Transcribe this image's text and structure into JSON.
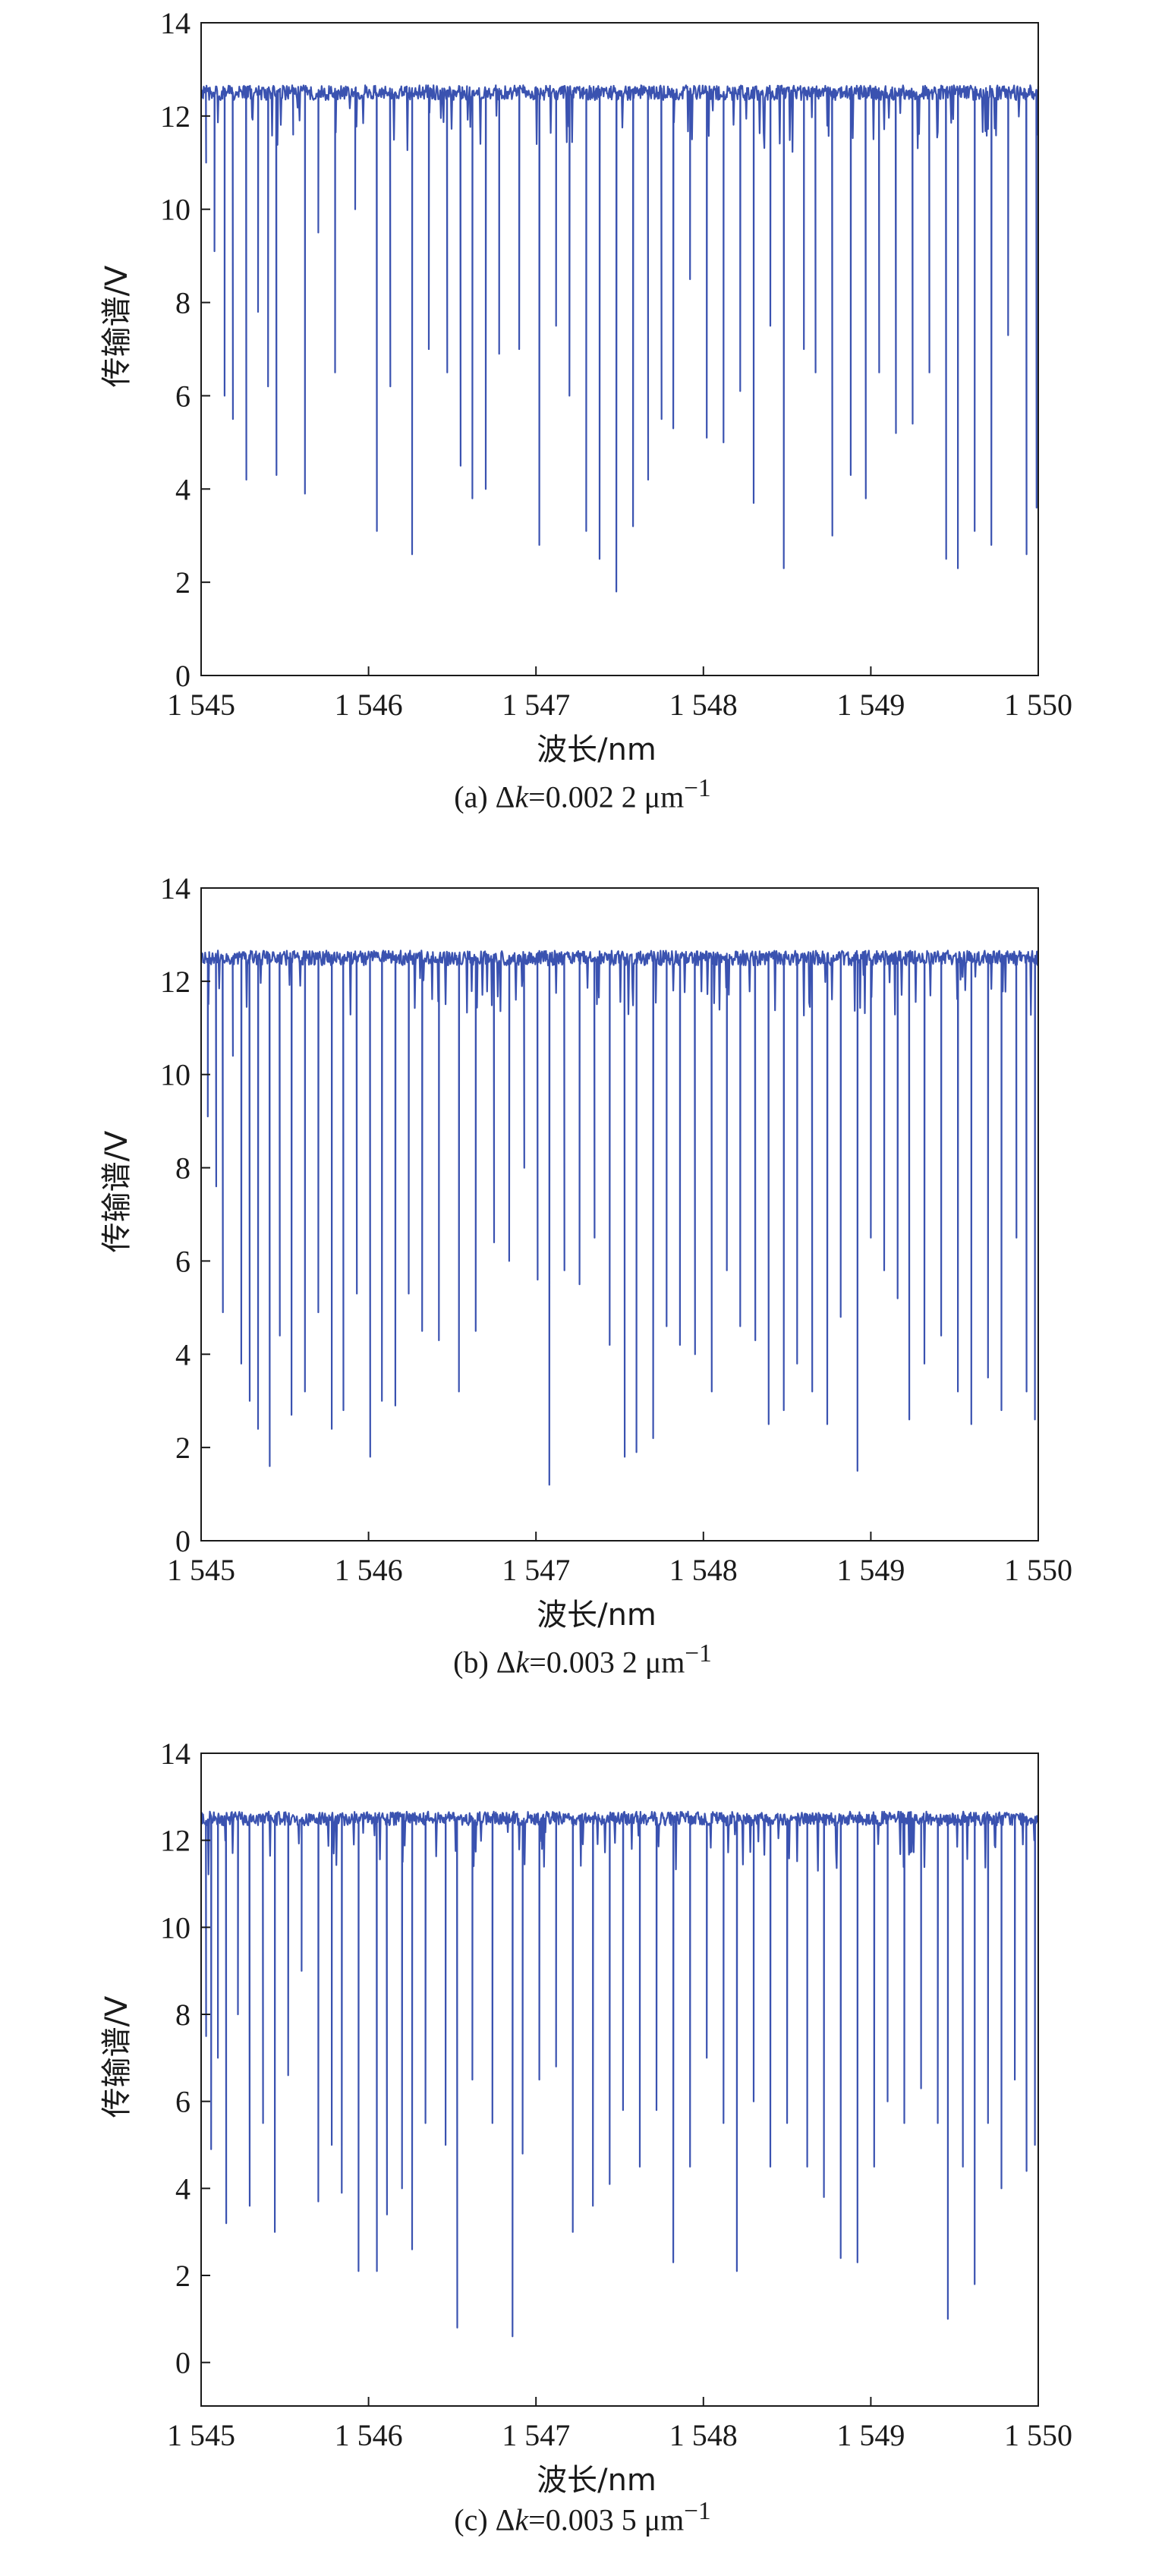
{
  "chart_data": [
    {
      "type": "line",
      "xlabel": "波长/nm",
      "ylabel": "传输谱/V",
      "xlim": [
        1545,
        1550
      ],
      "ylim": [
        0,
        14
      ],
      "xticks": [
        1545,
        1546,
        1547,
        1548,
        1549,
        1550
      ],
      "xtick_labels": [
        "1 545",
        "1 546",
        "1 547",
        "1 548",
        "1 549",
        "1 550"
      ],
      "yticks": [
        0,
        2,
        4,
        6,
        8,
        10,
        12,
        14
      ],
      "ytick_labels": [
        "0",
        "2",
        "4",
        "6",
        "8",
        "10",
        "12",
        "14"
      ],
      "grid": false,
      "caption": {
        "prefix": "(a) Δ",
        "k": "k",
        "value": "=0.002 2 μm",
        "sup": "−1"
      },
      "series": [
        {
          "color": "#3a52b0",
          "baseline": 12.5,
          "dips": [
            [
              1545.03,
              11.0
            ],
            [
              1545.08,
              9.1
            ],
            [
              1545.14,
              6.0
            ],
            [
              1545.19,
              5.5
            ],
            [
              1545.27,
              4.2
            ],
            [
              1545.34,
              7.8
            ],
            [
              1545.4,
              6.2
            ],
            [
              1545.45,
              4.3
            ],
            [
              1545.55,
              11.6
            ],
            [
              1545.62,
              3.9
            ],
            [
              1545.7,
              9.5
            ],
            [
              1545.8,
              6.5
            ],
            [
              1545.92,
              10.0
            ],
            [
              1546.05,
              3.1
            ],
            [
              1546.13,
              6.2
            ],
            [
              1546.26,
              2.6
            ],
            [
              1546.36,
              7.0
            ],
            [
              1546.47,
              6.5
            ],
            [
              1546.55,
              4.5
            ],
            [
              1546.62,
              3.8
            ],
            [
              1546.7,
              4.0
            ],
            [
              1546.78,
              6.9
            ],
            [
              1546.9,
              7.0
            ],
            [
              1547.02,
              2.8
            ],
            [
              1547.12,
              7.5
            ],
            [
              1547.2,
              6.0
            ],
            [
              1547.3,
              3.1
            ],
            [
              1547.38,
              2.5
            ],
            [
              1547.48,
              1.8
            ],
            [
              1547.58,
              3.2
            ],
            [
              1547.67,
              4.2
            ],
            [
              1547.75,
              5.5
            ],
            [
              1547.82,
              5.3
            ],
            [
              1547.92,
              8.5
            ],
            [
              1548.02,
              5.1
            ],
            [
              1548.12,
              5.0
            ],
            [
              1548.22,
              6.1
            ],
            [
              1548.3,
              3.7
            ],
            [
              1548.4,
              7.5
            ],
            [
              1548.48,
              2.3
            ],
            [
              1548.6,
              7.0
            ],
            [
              1548.67,
              6.5
            ],
            [
              1548.77,
              3.0
            ],
            [
              1548.88,
              4.3
            ],
            [
              1548.97,
              3.8
            ],
            [
              1549.05,
              6.5
            ],
            [
              1549.15,
              5.2
            ],
            [
              1549.25,
              5.4
            ],
            [
              1549.35,
              6.5
            ],
            [
              1549.45,
              2.5
            ],
            [
              1549.52,
              2.3
            ],
            [
              1549.62,
              3.1
            ],
            [
              1549.72,
              2.8
            ],
            [
              1549.82,
              7.3
            ],
            [
              1549.93,
              2.6
            ],
            [
              1549.99,
              3.6
            ]
          ]
        }
      ]
    },
    {
      "type": "line",
      "xlabel": "波长/nm",
      "ylabel": "传输谱/V",
      "xlim": [
        1545,
        1550
      ],
      "ylim": [
        0,
        14
      ],
      "xticks": [
        1545,
        1546,
        1547,
        1548,
        1549,
        1550
      ],
      "xtick_labels": [
        "1 545",
        "1 546",
        "1 547",
        "1 548",
        "1 549",
        "1 550"
      ],
      "yticks": [
        0,
        2,
        4,
        6,
        8,
        10,
        12,
        14
      ],
      "ytick_labels": [
        "0",
        "2",
        "4",
        "6",
        "8",
        "10",
        "12",
        "14"
      ],
      "grid": false,
      "caption": {
        "prefix": "(b) Δ",
        "k": "k",
        "value": "=0.003 2 μm",
        "sup": "−1"
      },
      "series": [
        {
          "color": "#3a52b0",
          "baseline": 12.5,
          "dips": [
            [
              1545.04,
              9.1
            ],
            [
              1545.09,
              7.6
            ],
            [
              1545.13,
              4.9
            ],
            [
              1545.19,
              10.4
            ],
            [
              1545.24,
              3.8
            ],
            [
              1545.29,
              3.0
            ],
            [
              1545.34,
              2.4
            ],
            [
              1545.41,
              1.6
            ],
            [
              1545.47,
              4.4
            ],
            [
              1545.54,
              2.7
            ],
            [
              1545.62,
              3.2
            ],
            [
              1545.7,
              4.9
            ],
            [
              1545.78,
              2.4
            ],
            [
              1545.85,
              2.8
            ],
            [
              1545.93,
              5.3
            ],
            [
              1546.01,
              1.8
            ],
            [
              1546.08,
              3.0
            ],
            [
              1546.16,
              2.9
            ],
            [
              1546.24,
              5.3
            ],
            [
              1546.32,
              4.5
            ],
            [
              1546.42,
              4.3
            ],
            [
              1546.54,
              3.2
            ],
            [
              1546.64,
              4.5
            ],
            [
              1546.75,
              6.4
            ],
            [
              1546.84,
              6.0
            ],
            [
              1546.93,
              8.0
            ],
            [
              1547.01,
              5.6
            ],
            [
              1547.08,
              1.2
            ],
            [
              1547.17,
              5.8
            ],
            [
              1547.26,
              5.5
            ],
            [
              1547.35,
              6.5
            ],
            [
              1547.44,
              4.2
            ],
            [
              1547.53,
              1.8
            ],
            [
              1547.6,
              1.9
            ],
            [
              1547.7,
              2.2
            ],
            [
              1547.78,
              4.6
            ],
            [
              1547.86,
              4.2
            ],
            [
              1547.95,
              4.0
            ],
            [
              1548.05,
              3.2
            ],
            [
              1548.14,
              5.8
            ],
            [
              1548.22,
              4.6
            ],
            [
              1548.31,
              4.3
            ],
            [
              1548.39,
              2.5
            ],
            [
              1548.48,
              2.8
            ],
            [
              1548.56,
              3.8
            ],
            [
              1548.65,
              3.2
            ],
            [
              1548.74,
              2.5
            ],
            [
              1548.82,
              4.8
            ],
            [
              1548.92,
              1.5
            ],
            [
              1549.0,
              6.5
            ],
            [
              1549.08,
              5.8
            ],
            [
              1549.16,
              5.2
            ],
            [
              1549.23,
              2.6
            ],
            [
              1549.32,
              3.8
            ],
            [
              1549.42,
              4.4
            ],
            [
              1549.52,
              3.2
            ],
            [
              1549.6,
              2.5
            ],
            [
              1549.7,
              3.5
            ],
            [
              1549.78,
              2.8
            ],
            [
              1549.87,
              6.5
            ],
            [
              1549.93,
              3.2
            ],
            [
              1549.98,
              2.6
            ]
          ]
        }
      ]
    },
    {
      "type": "line",
      "xlabel": "波长/nm",
      "ylabel": "传输谱/V",
      "xlim": [
        1545,
        1550
      ],
      "ylim": [
        -1,
        14
      ],
      "xticks": [
        1545,
        1546,
        1547,
        1548,
        1549,
        1550
      ],
      "xtick_labels": [
        "1 545",
        "1 546",
        "1 547",
        "1 548",
        "1 549",
        "1 550"
      ],
      "yticks": [
        0,
        2,
        4,
        6,
        8,
        10,
        12,
        14
      ],
      "ytick_labels": [
        "0",
        "2",
        "4",
        "6",
        "8",
        "10",
        "12",
        "14"
      ],
      "grid": false,
      "caption": {
        "prefix": "(c) Δ",
        "k": "k",
        "value": "=0.003 5 μm",
        "sup": "−1"
      },
      "series": [
        {
          "color": "#3a52b0",
          "baseline": 12.5,
          "dips": [
            [
              1545.03,
              7.5
            ],
            [
              1545.06,
              4.9
            ],
            [
              1545.1,
              7.0
            ],
            [
              1545.15,
              3.2
            ],
            [
              1545.22,
              8.0
            ],
            [
              1545.29,
              3.6
            ],
            [
              1545.37,
              5.5
            ],
            [
              1545.44,
              3.0
            ],
            [
              1545.52,
              6.6
            ],
            [
              1545.6,
              9.0
            ],
            [
              1545.7,
              3.7
            ],
            [
              1545.78,
              5.0
            ],
            [
              1545.84,
              3.9
            ],
            [
              1545.94,
              2.1
            ],
            [
              1546.05,
              2.1
            ],
            [
              1546.11,
              3.4
            ],
            [
              1546.2,
              4.0
            ],
            [
              1546.26,
              2.6
            ],
            [
              1546.34,
              5.5
            ],
            [
              1546.46,
              5.0
            ],
            [
              1546.53,
              0.8
            ],
            [
              1546.62,
              6.5
            ],
            [
              1546.74,
              5.5
            ],
            [
              1546.86,
              0.6
            ],
            [
              1546.92,
              4.8
            ],
            [
              1547.02,
              6.5
            ],
            [
              1547.12,
              6.8
            ],
            [
              1547.22,
              3.0
            ],
            [
              1547.34,
              3.6
            ],
            [
              1547.44,
              4.1
            ],
            [
              1547.52,
              5.8
            ],
            [
              1547.62,
              4.5
            ],
            [
              1547.72,
              5.8
            ],
            [
              1547.82,
              2.3
            ],
            [
              1547.92,
              4.5
            ],
            [
              1548.02,
              7.0
            ],
            [
              1548.12,
              5.5
            ],
            [
              1548.2,
              2.1
            ],
            [
              1548.3,
              6.0
            ],
            [
              1548.4,
              4.5
            ],
            [
              1548.5,
              5.5
            ],
            [
              1548.62,
              4.5
            ],
            [
              1548.72,
              3.8
            ],
            [
              1548.82,
              2.4
            ],
            [
              1548.92,
              2.3
            ],
            [
              1549.02,
              4.5
            ],
            [
              1549.1,
              6.0
            ],
            [
              1549.2,
              5.5
            ],
            [
              1549.3,
              6.3
            ],
            [
              1549.4,
              5.5
            ],
            [
              1549.46,
              1.0
            ],
            [
              1549.55,
              4.5
            ],
            [
              1549.62,
              1.8
            ],
            [
              1549.7,
              5.5
            ],
            [
              1549.78,
              4.0
            ],
            [
              1549.86,
              6.5
            ],
            [
              1549.93,
              4.4
            ],
            [
              1549.98,
              5.0
            ]
          ]
        }
      ]
    }
  ]
}
